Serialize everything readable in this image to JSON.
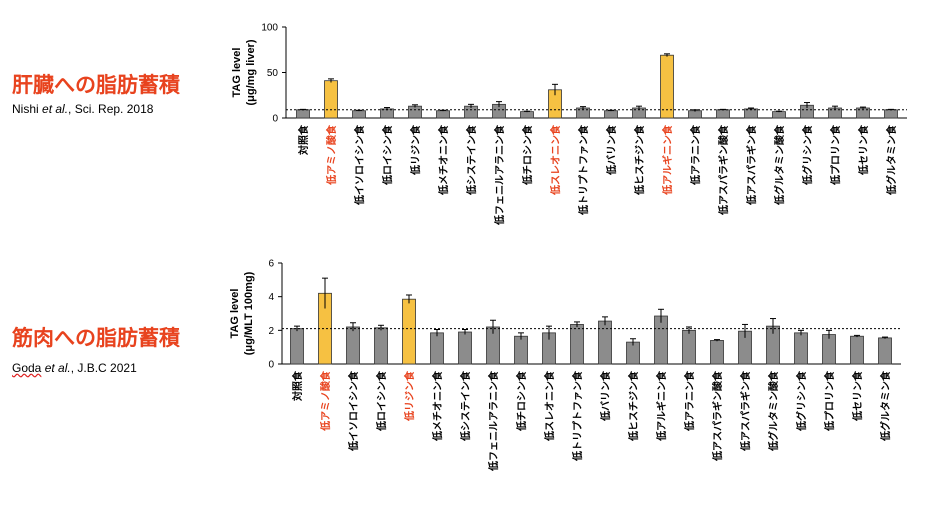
{
  "colors": {
    "title_red": "#e8431e",
    "gray_bar": "#8c8c8c",
    "yellow_bar": "#f6c142",
    "highlight_label": "#e8431e"
  },
  "section1": {
    "title": "肝臓への脂肪蓄積",
    "cite_author": "Nishi",
    "cite_etal": "et al.",
    "cite_rest": ", Sci. Rep. 2018"
  },
  "section2": {
    "title": "筋肉への脂肪蓄積",
    "cite_author": "Goda",
    "cite_etal": "et al.",
    "cite_rest": ", J.B.C 2021"
  },
  "chart_data": [
    {
      "type": "bar",
      "ylabel_line1": "TAG level",
      "ylabel_line2": "(μg/mg liver)",
      "ylim": [
        0,
        100
      ],
      "yticks": [
        "0",
        "50",
        "100"
      ],
      "reference_line": 9,
      "categories": [
        "対照食",
        "低アミノ酸食",
        "低イソロイシン食",
        "低ロイシン食",
        "低リジン食",
        "低メチオニン食",
        "低システイン食",
        "低フェニルアラニン食",
        "低チロシン食",
        "低スレオニン食",
        "低トリプトファン食",
        "低バリン食",
        "低ヒスチジン食",
        "低アルギニン食",
        "低アラニン食",
        "低アスパラギン酸食",
        "低アスパラギン食",
        "低グルタミン酸食",
        "低グリシン食",
        "低プロリン食",
        "低セリン食",
        "低グルタミン食"
      ],
      "values": [
        9,
        41,
        8,
        10,
        13,
        8,
        13,
        15,
        7,
        31,
        11,
        8,
        11,
        69,
        8,
        9,
        10,
        7,
        14,
        11,
        11,
        9
      ],
      "errors": [
        0.5,
        2,
        0.5,
        1.5,
        1.5,
        0.5,
        2,
        3,
        0.5,
        6,
        1.5,
        0.5,
        2,
        1.5,
        1,
        0.5,
        1,
        0.5,
        3,
        2,
        1,
        0.5
      ],
      "highlight": [
        1,
        9,
        13
      ]
    },
    {
      "type": "bar",
      "ylabel_line1": "TAG level",
      "ylabel_line2": "(μg/MLT 100mg)",
      "ylim": [
        0,
        6
      ],
      "yticks": [
        "0",
        "2",
        "4",
        "6"
      ],
      "reference_line": 2.1,
      "categories": [
        "対照食",
        "低アミノ酸食",
        "低イソロイシン食",
        "低ロイシン食",
        "低リジン食",
        "低メチオニン食",
        "低システイン食",
        "低フェニルアラニン食",
        "低チロシン食",
        "低スレオニン食",
        "低トリプトファン食",
        "低バリン食",
        "低ヒスチジン食",
        "低アルギニン食",
        "低アラニン食",
        "低アスパラギン酸食",
        "低アスパラギン食",
        "低グルタミン酸食",
        "低グリシン食",
        "低プロリン食",
        "低セリン食",
        "低グルタミン食"
      ],
      "values": [
        2.1,
        4.2,
        2.2,
        2.15,
        3.85,
        1.85,
        1.9,
        2.2,
        1.65,
        1.85,
        2.35,
        2.55,
        1.3,
        2.85,
        2.0,
        1.4,
        1.95,
        2.25,
        1.85,
        1.75,
        1.65,
        1.55
      ],
      "errors": [
        0.15,
        0.9,
        0.25,
        0.15,
        0.25,
        0.2,
        0.15,
        0.4,
        0.2,
        0.4,
        0.15,
        0.25,
        0.2,
        0.4,
        0.2,
        0.05,
        0.4,
        0.45,
        0.15,
        0.25,
        0.05,
        0.05
      ],
      "highlight": [
        1,
        4
      ]
    }
  ]
}
